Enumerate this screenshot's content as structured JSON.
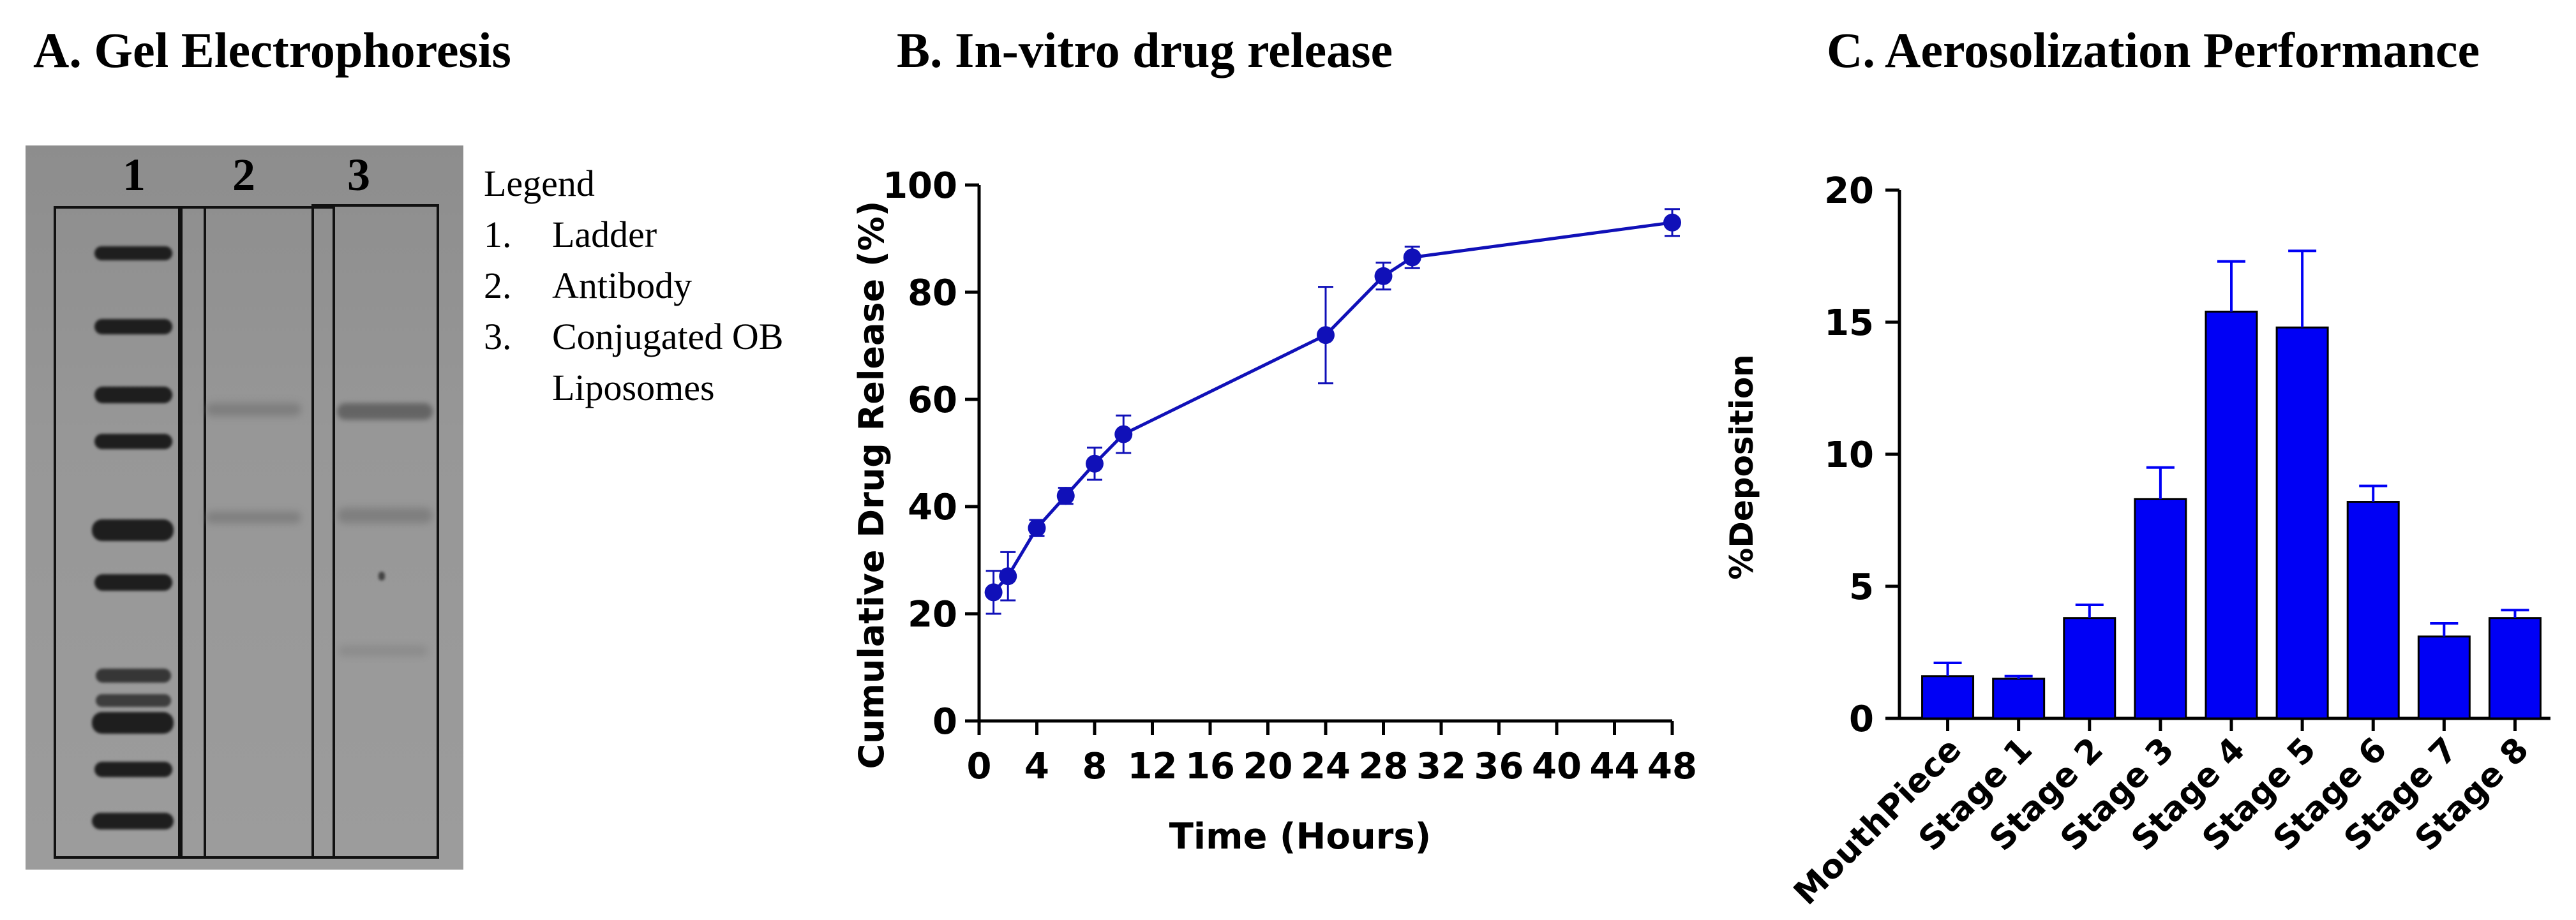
{
  "panels": {
    "a": {
      "title": "A. Gel Electrophoresis",
      "lane_labels": [
        "1",
        "2",
        "3"
      ],
      "legend": {
        "heading": "Legend",
        "items": [
          {
            "num": "1.",
            "text": "Ladder"
          },
          {
            "num": "2.",
            "text": "Antibody"
          },
          {
            "num": "3.",
            "text": "Conjugated OB",
            "text2": "Liposomes"
          }
        ]
      }
    },
    "b": {
      "title": "B. In-vitro drug release"
    },
    "c": {
      "title": "C. Aerosolization Performance"
    }
  },
  "chart_data": [
    {
      "type": "line",
      "xlabel": "Time (Hours)",
      "ylabel": "Cumulative Drug Release (%)",
      "xlim": [
        0,
        48
      ],
      "ylim": [
        0,
        100
      ],
      "xticks": [
        0,
        4,
        8,
        12,
        16,
        20,
        24,
        28,
        32,
        36,
        40,
        44,
        48
      ],
      "yticks": [
        0,
        20,
        40,
        60,
        80,
        100
      ],
      "color": "#1010b8",
      "grid": false,
      "series": [
        {
          "x": [
            1,
            2,
            4,
            6,
            8,
            10,
            24,
            28,
            30,
            48
          ],
          "y": [
            24,
            27,
            36,
            42,
            48,
            53.5,
            72,
            83,
            86.5,
            93
          ],
          "err": [
            4,
            4.5,
            1.5,
            1.5,
            3,
            3.5,
            9,
            2.5,
            2,
            2.5
          ]
        }
      ]
    },
    {
      "type": "bar",
      "ylabel": "%Deposition",
      "ylim": [
        0,
        20
      ],
      "yticks": [
        0,
        5,
        10,
        15,
        20
      ],
      "color": "#0000f5",
      "grid": false,
      "categories": [
        "MouthPiece",
        "Stage 1",
        "Stage 2",
        "Stage 3",
        "Stage 4",
        "Stage 5",
        "Stage 6",
        "Stage 7",
        "Stage 8"
      ],
      "values": [
        1.6,
        1.5,
        3.8,
        8.3,
        15.4,
        14.8,
        8.2,
        3.1,
        3.8
      ],
      "err": [
        0.5,
        0.1,
        0.5,
        1.2,
        1.9,
        2.9,
        0.6,
        0.5,
        0.3
      ]
    }
  ]
}
